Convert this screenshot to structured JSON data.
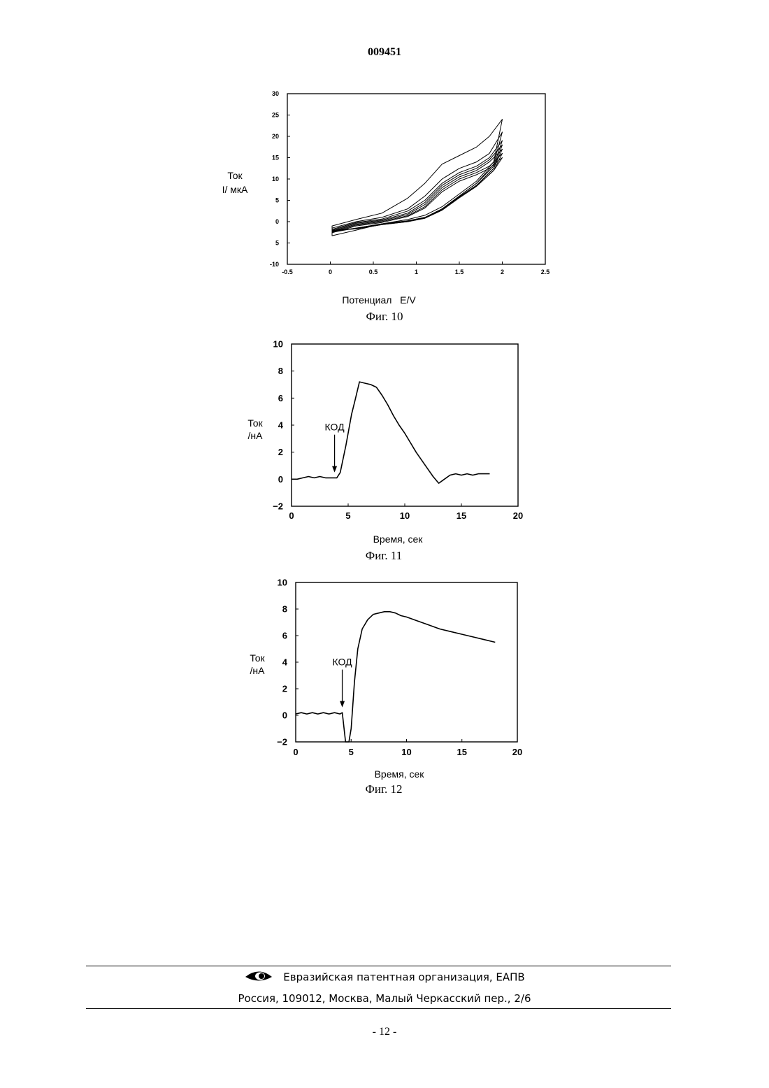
{
  "header": {
    "doc_number": "009451"
  },
  "chart_data": [
    {
      "type": "line",
      "caption": "Фиг. 10",
      "xlabel": "Потенциал   E/V",
      "ylabel": [
        "Ток",
        "I/ мкА"
      ],
      "xlim": [
        -0.5,
        2.5
      ],
      "ylim": [
        -10,
        30
      ],
      "xticks": [
        -0.5,
        0,
        0.5,
        1,
        1.5,
        2,
        2.5
      ],
      "xtick_labels": [
        "-0.5",
        "0",
        "0.5",
        "1",
        "1.5",
        "2",
        "2.5"
      ],
      "yticks": [
        30,
        25,
        20,
        15,
        10,
        5,
        0,
        -5,
        -10
      ],
      "ytick_labels": [
        "30",
        "25",
        "20",
        "15",
        "10",
        "5",
        "0",
        "5",
        "-10"
      ],
      "grid": false,
      "series": [
        {
          "x": [
            0.02,
            0.3,
            0.6,
            0.9,
            1.1,
            1.3,
            1.5,
            1.7,
            1.85,
            2.0,
            1.9,
            1.7,
            1.5,
            1.3,
            1.1,
            0.9,
            0.6,
            0.3,
            0.02
          ],
          "y": [
            -1.0,
            0.5,
            2.0,
            5.5,
            9.0,
            13.5,
            15.5,
            17.5,
            20.0,
            24.0,
            14.0,
            9.5,
            6.5,
            3.5,
            1.5,
            0.5,
            -0.5,
            -2.0,
            -3.3
          ]
        },
        {
          "x": [
            0.02,
            0.3,
            0.6,
            0.9,
            1.1,
            1.3,
            1.5,
            1.7,
            1.85,
            2.0,
            1.9,
            1.7,
            1.5,
            1.3,
            1.1,
            0.9,
            0.6,
            0.3,
            0.02
          ],
          "y": [
            -1.5,
            0.0,
            1.0,
            3.0,
            6.0,
            10.0,
            12.5,
            14.0,
            16.0,
            21.0,
            13.5,
            9.0,
            6.0,
            3.0,
            1.0,
            0.2,
            -0.5,
            -1.5,
            -2.5
          ]
        },
        {
          "x": [
            0.02,
            0.3,
            0.6,
            0.9,
            1.1,
            1.3,
            1.5,
            1.7,
            1.85,
            2.0,
            1.9,
            1.7,
            1.5,
            1.3,
            1.1,
            0.9,
            0.6,
            0.3,
            0.02
          ],
          "y": [
            -1.8,
            -0.2,
            0.6,
            2.5,
            5.0,
            9.0,
            11.5,
            13.0,
            15.0,
            19.0,
            13.0,
            9.0,
            6.0,
            3.0,
            1.0,
            0.2,
            -0.5,
            -1.5,
            -2.3
          ]
        },
        {
          "x": [
            0.02,
            0.3,
            0.6,
            0.9,
            1.1,
            1.3,
            1.5,
            1.7,
            1.85,
            2.0,
            1.9,
            1.7,
            1.5,
            1.3,
            1.1,
            0.9,
            0.6,
            0.3,
            0.02
          ],
          "y": [
            -2.0,
            -0.4,
            0.4,
            2.0,
            4.5,
            8.5,
            11.0,
            12.5,
            14.5,
            18.0,
            12.5,
            8.5,
            5.8,
            2.8,
            0.9,
            0.1,
            -0.6,
            -1.6,
            -2.2
          ]
        },
        {
          "x": [
            0.02,
            0.3,
            0.6,
            0.9,
            1.1,
            1.3,
            1.5,
            1.7,
            1.85,
            2.0,
            1.9,
            1.7,
            1.5,
            1.3,
            1.1,
            0.9,
            0.6,
            0.3,
            0.02
          ],
          "y": [
            -2.2,
            -0.6,
            0.2,
            1.7,
            4.0,
            8.0,
            10.5,
            12.0,
            14.0,
            17.0,
            12.5,
            8.5,
            5.8,
            2.8,
            0.9,
            0.1,
            -0.6,
            -1.6,
            -2.0
          ]
        },
        {
          "x": [
            0.02,
            0.3,
            0.6,
            0.9,
            1.1,
            1.3,
            1.5,
            1.7,
            1.85,
            2.0,
            1.9,
            1.7,
            1.5,
            1.3,
            1.1,
            0.9,
            0.6,
            0.3,
            0.02
          ],
          "y": [
            -2.4,
            -0.8,
            0.0,
            1.4,
            3.5,
            7.5,
            10.0,
            11.5,
            13.0,
            16.0,
            12.0,
            8.3,
            5.6,
            2.7,
            0.8,
            0.0,
            -0.7,
            -1.7,
            -2.0
          ]
        },
        {
          "x": [
            0.02,
            0.3,
            0.6,
            0.9,
            1.1,
            1.3,
            1.5,
            1.7,
            1.85,
            2.0,
            1.9,
            1.7,
            1.5,
            1.3,
            1.1,
            0.9,
            0.6,
            0.3,
            0.02
          ],
          "y": [
            -2.6,
            -1.0,
            -0.2,
            1.2,
            3.2,
            7.0,
            9.5,
            11.0,
            12.5,
            15.0,
            12.0,
            8.3,
            5.6,
            2.7,
            0.8,
            0.0,
            -0.7,
            -1.7,
            -2.0
          ]
        }
      ]
    },
    {
      "type": "line",
      "caption": "Фиг. 11",
      "xlabel": "Время, сек",
      "ylabel": [
        "Ток",
        "/нА"
      ],
      "xlim": [
        0,
        20
      ],
      "ylim": [
        -2,
        10
      ],
      "xticks": [
        0,
        5,
        10,
        15,
        20
      ],
      "xtick_labels": [
        "0",
        "5",
        "10",
        "15",
        "20"
      ],
      "yticks": [
        10,
        8,
        6,
        4,
        2,
        0,
        -2
      ],
      "ytick_labels": [
        "10",
        "8",
        "6",
        "4",
        "2",
        "0",
        "−2"
      ],
      "grid": false,
      "annotations": [
        {
          "text": "КОД",
          "x": 3.8,
          "y": 0.5
        }
      ],
      "series": [
        {
          "x": [
            0,
            0.5,
            1,
            1.5,
            2,
            2.5,
            3,
            3.5,
            4,
            4.3,
            4.8,
            5.3,
            5.6,
            6.0,
            6.5,
            7.0,
            7.5,
            8.0,
            8.5,
            9.0,
            9.5,
            10,
            10.5,
            11,
            11.5,
            12,
            12.5,
            13,
            13.5,
            14,
            14.5,
            15,
            15.5,
            16,
            16.5,
            17,
            17.5
          ],
          "y": [
            0.0,
            0.0,
            0.1,
            0.2,
            0.1,
            0.2,
            0.1,
            0.1,
            0.1,
            0.5,
            2.5,
            4.8,
            5.8,
            7.2,
            7.1,
            7.0,
            6.8,
            6.2,
            5.5,
            4.7,
            4.0,
            3.4,
            2.7,
            2.0,
            1.4,
            0.8,
            0.2,
            -0.3,
            0.0,
            0.3,
            0.4,
            0.3,
            0.4,
            0.3,
            0.4,
            0.4,
            0.4
          ]
        }
      ]
    },
    {
      "type": "line",
      "caption": "Фиг. 12",
      "xlabel": "Время, сек",
      "ylabel": [
        "Ток",
        "/нА"
      ],
      "xlim": [
        0,
        20
      ],
      "ylim": [
        -2,
        10
      ],
      "xticks": [
        0,
        5,
        10,
        15,
        20
      ],
      "xtick_labels": [
        "0",
        "5",
        "10",
        "15",
        "20"
      ],
      "yticks": [
        10,
        8,
        6,
        4,
        2,
        0,
        -2
      ],
      "ytick_labels": [
        "10",
        "8",
        "6",
        "4",
        "2",
        "0",
        "−2"
      ],
      "grid": false,
      "annotations": [
        {
          "text": "КОД",
          "x": 4.2,
          "y": 0.6
        }
      ],
      "series": [
        {
          "x": [
            0,
            0.5,
            1,
            1.5,
            2,
            2.5,
            3,
            3.5,
            4,
            4.2,
            4.5,
            4.8,
            5.0,
            5.3,
            5.6,
            6.0,
            6.5,
            7.0,
            7.5,
            8.0,
            8.5,
            9.0,
            9.5,
            10,
            11,
            12,
            13,
            14,
            15,
            16,
            17,
            18
          ],
          "y": [
            0.1,
            0.2,
            0.1,
            0.2,
            0.1,
            0.2,
            0.1,
            0.2,
            0.1,
            0.2,
            -2.0,
            -2.0,
            -1.0,
            2.5,
            5.0,
            6.5,
            7.2,
            7.6,
            7.7,
            7.8,
            7.8,
            7.7,
            7.5,
            7.4,
            7.1,
            6.8,
            6.5,
            6.3,
            6.1,
            5.9,
            5.7,
            5.5
          ]
        }
      ]
    }
  ],
  "footer": {
    "org": "Евразийская патентная организация, ЕАПВ",
    "address": "Россия, 109012, Москва, Малый Черкасский пер., 2/6",
    "page_number": "- 12 -"
  }
}
